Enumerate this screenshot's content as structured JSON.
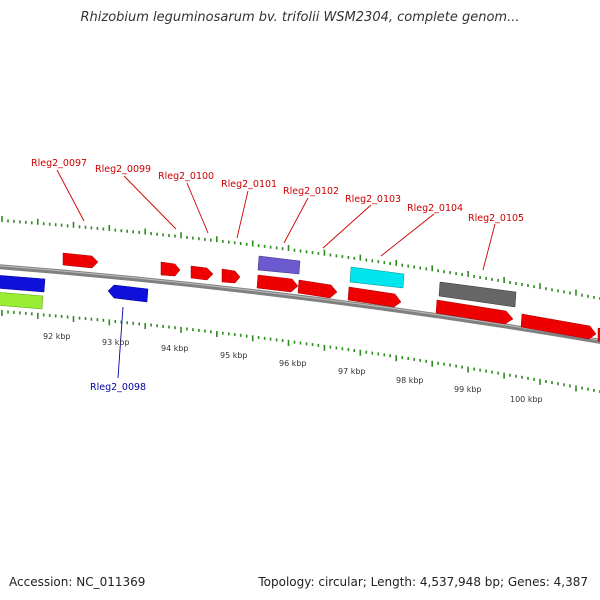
{
  "title": "Rhizobium leguminosarum bv. trifolii WSM2304, complete genom...",
  "footer": {
    "accession": "Accession: NC_011369",
    "summary": "Topology: circular; Length: 4,537,948 bp; Genes: 4,387"
  },
  "colors": {
    "backbone": "#808080",
    "tick": "#2e8b20",
    "label_red": "#cc0000",
    "label_blue": "#0000aa",
    "gene_red": "#ee0000",
    "gene_blue": "#1010dd",
    "gene_purple": "#6a5acd",
    "gene_cyan": "#00e5ee",
    "gene_gray": "#666666",
    "gene_green": "#99ee33"
  },
  "scale_labels": [
    "92 kbp",
    "93 kbp",
    "94 kbp",
    "95 kbp",
    "96 kbp",
    "97 kbp",
    "98 kbp",
    "99 kbp",
    "100 kbp"
  ],
  "gene_labels": [
    {
      "name": "Rleg2_0097",
      "color": "red"
    },
    {
      "name": "Rleg2_0099",
      "color": "red"
    },
    {
      "name": "Rleg2_0100",
      "color": "red"
    },
    {
      "name": "Rleg2_0101",
      "color": "red"
    },
    {
      "name": "Rleg2_0102",
      "color": "red"
    },
    {
      "name": "Rleg2_0103",
      "color": "red"
    },
    {
      "name": "Rleg2_0104",
      "color": "red"
    },
    {
      "name": "Rleg2_0105",
      "color": "red"
    },
    {
      "name": "Rleg2_0098",
      "color": "blue"
    }
  ]
}
